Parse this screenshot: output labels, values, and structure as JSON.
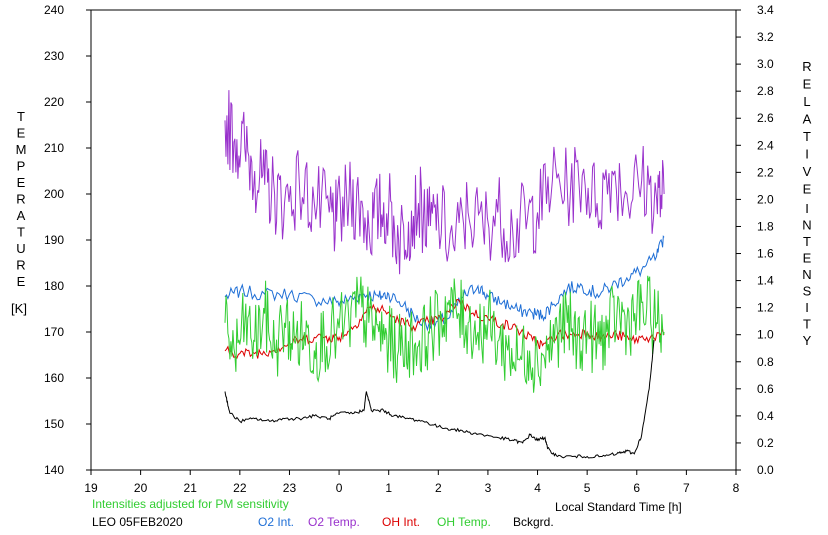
{
  "chart_data": {
    "type": "line",
    "left_axis": {
      "label_letters": [
        "T",
        "E",
        "M",
        "P",
        "E",
        "R",
        "A",
        "T",
        "U",
        "R",
        "E"
      ],
      "unit": "[K]",
      "ylim": [
        140,
        240
      ],
      "ticks": [
        "140",
        "150",
        "160",
        "170",
        "180",
        "190",
        "200",
        "210",
        "220",
        "230",
        "240"
      ]
    },
    "right_axis": {
      "label_word1": [
        "R",
        "E",
        "L",
        "A",
        "T",
        "I",
        "V",
        "E"
      ],
      "label_word2": [
        "I",
        "N",
        "T",
        "E",
        "N",
        "S",
        "I",
        "T",
        "Y"
      ],
      "ylim": [
        0.0,
        3.4
      ],
      "ticks": [
        "0.0",
        "0.2",
        "0.4",
        "0.6",
        "0.8",
        "1.0",
        "1.2",
        "1.4",
        "1.6",
        "1.8",
        "2.0",
        "2.2",
        "2.4",
        "2.6",
        "2.8",
        "3.0",
        "3.2",
        "3.4"
      ]
    },
    "x_axis": {
      "label": "Local Standard Time [h]",
      "range": [
        19,
        32
      ],
      "ticks": [
        "19",
        "20",
        "21",
        "22",
        "23",
        "0",
        "1",
        "2",
        "3",
        "4",
        "5",
        "6",
        "7",
        "8"
      ]
    },
    "note": "Intensities adjusted for PM sensitivity",
    "station": "LEO 05FEB2020",
    "series": [
      {
        "name": "O2 Int.",
        "color": "#1f6fd6",
        "axis": "right",
        "points": [
          [
            21.7,
            1.28
          ],
          [
            22.0,
            1.32
          ],
          [
            22.5,
            1.3
          ],
          [
            23.0,
            1.3
          ],
          [
            23.5,
            1.26
          ],
          [
            23.95,
            1.24
          ],
          [
            24.2,
            1.26
          ],
          [
            24.5,
            1.3
          ],
          [
            24.8,
            1.28
          ],
          [
            25.0,
            1.3
          ],
          [
            25.3,
            1.22
          ],
          [
            25.6,
            1.1
          ],
          [
            25.9,
            1.08
          ],
          [
            26.2,
            1.12
          ],
          [
            26.5,
            1.28
          ],
          [
            26.8,
            1.36
          ],
          [
            27.0,
            1.28
          ],
          [
            27.3,
            1.24
          ],
          [
            27.6,
            1.18
          ],
          [
            27.9,
            1.16
          ],
          [
            28.1,
            1.14
          ],
          [
            28.3,
            1.22
          ],
          [
            28.6,
            1.34
          ],
          [
            28.9,
            1.36
          ],
          [
            29.2,
            1.3
          ],
          [
            29.5,
            1.36
          ],
          [
            29.8,
            1.42
          ],
          [
            30.1,
            1.48
          ],
          [
            30.4,
            1.58
          ],
          [
            30.55,
            1.72
          ]
        ]
      },
      {
        "name": "O2 Temp.",
        "color": "#9932cc",
        "axis": "left",
        "points": [
          [
            21.7,
            216
          ],
          [
            21.9,
            212
          ],
          [
            22.1,
            210
          ],
          [
            22.3,
            205
          ],
          [
            22.5,
            202
          ],
          [
            22.7,
            200
          ],
          [
            22.9,
            198
          ],
          [
            23.2,
            202
          ],
          [
            23.5,
            198
          ],
          [
            23.8,
            196
          ],
          [
            23.95,
            194
          ],
          [
            24.2,
            199
          ],
          [
            24.4,
            198
          ],
          [
            24.6,
            193
          ],
          [
            24.8,
            196
          ],
          [
            25.0,
            197
          ],
          [
            25.2,
            190
          ],
          [
            25.4,
            194
          ],
          [
            25.6,
            198
          ],
          [
            25.8,
            193
          ],
          [
            26.0,
            195
          ],
          [
            26.3,
            189
          ],
          [
            26.6,
            196
          ],
          [
            26.9,
            193
          ],
          [
            27.2,
            196
          ],
          [
            27.5,
            192
          ],
          [
            27.8,
            195
          ],
          [
            28.0,
            196
          ],
          [
            28.3,
            203
          ],
          [
            28.6,
            201
          ],
          [
            28.9,
            204
          ],
          [
            29.2,
            198
          ],
          [
            29.5,
            205
          ],
          [
            29.8,
            200
          ],
          [
            30.1,
            203
          ],
          [
            30.4,
            199
          ],
          [
            30.55,
            200
          ]
        ]
      },
      {
        "name": "OH Int.",
        "color": "#dc0000",
        "axis": "right",
        "points": [
          [
            21.7,
            0.88
          ],
          [
            22.0,
            0.86
          ],
          [
            22.3,
            0.86
          ],
          [
            22.6,
            0.88
          ],
          [
            22.9,
            0.92
          ],
          [
            23.2,
            0.96
          ],
          [
            23.5,
            0.98
          ],
          [
            23.8,
            0.98
          ],
          [
            24.0,
            0.98
          ],
          [
            24.3,
            1.06
          ],
          [
            24.6,
            1.2
          ],
          [
            24.9,
            1.18
          ],
          [
            25.2,
            1.1
          ],
          [
            25.5,
            1.06
          ],
          [
            25.8,
            1.1
          ],
          [
            26.1,
            1.12
          ],
          [
            26.4,
            1.26
          ],
          [
            26.7,
            1.16
          ],
          [
            27.0,
            1.12
          ],
          [
            27.3,
            1.08
          ],
          [
            27.6,
            1.04
          ],
          [
            27.9,
            0.96
          ],
          [
            28.1,
            0.92
          ],
          [
            28.4,
            1.0
          ],
          [
            28.7,
            1.0
          ],
          [
            29.0,
            1.02
          ],
          [
            29.3,
            0.98
          ],
          [
            29.6,
            1.0
          ],
          [
            29.9,
            0.96
          ],
          [
            30.2,
            0.98
          ],
          [
            30.55,
            1.0
          ]
        ]
      },
      {
        "name": "OH Temp.",
        "color": "#32cd32",
        "axis": "left",
        "points": [
          [
            21.7,
            172
          ],
          [
            21.9,
            165
          ],
          [
            22.1,
            172
          ],
          [
            22.3,
            168
          ],
          [
            22.5,
            174
          ],
          [
            22.7,
            166
          ],
          [
            22.9,
            172
          ],
          [
            23.1,
            168
          ],
          [
            23.3,
            170
          ],
          [
            23.5,
            166
          ],
          [
            23.7,
            169
          ],
          [
            23.95,
            170
          ],
          [
            24.2,
            172
          ],
          [
            24.4,
            176
          ],
          [
            24.6,
            172
          ],
          [
            24.8,
            170
          ],
          [
            25.0,
            168
          ],
          [
            25.2,
            166
          ],
          [
            25.4,
            168
          ],
          [
            25.6,
            167
          ],
          [
            25.8,
            170
          ],
          [
            26.0,
            172
          ],
          [
            26.2,
            176
          ],
          [
            26.4,
            174
          ],
          [
            26.6,
            172
          ],
          [
            26.8,
            170
          ],
          [
            27.0,
            172
          ],
          [
            27.2,
            168
          ],
          [
            27.4,
            166
          ],
          [
            27.6,
            164
          ],
          [
            27.8,
            166
          ],
          [
            28.0,
            164
          ],
          [
            28.2,
            166
          ],
          [
            28.4,
            170
          ],
          [
            28.6,
            172
          ],
          [
            28.8,
            168
          ],
          [
            29.0,
            170
          ],
          [
            29.2,
            168
          ],
          [
            29.4,
            170
          ],
          [
            29.6,
            174
          ],
          [
            29.8,
            172
          ],
          [
            30.0,
            174
          ],
          [
            30.2,
            175
          ],
          [
            30.4,
            172
          ],
          [
            30.55,
            170
          ]
        ]
      },
      {
        "name": "Bckgrd.",
        "color": "#000000",
        "axis": "right",
        "points": [
          [
            21.7,
            0.58
          ],
          [
            21.8,
            0.42
          ],
          [
            22.0,
            0.36
          ],
          [
            22.3,
            0.38
          ],
          [
            22.6,
            0.36
          ],
          [
            22.9,
            0.38
          ],
          [
            23.2,
            0.38
          ],
          [
            23.5,
            0.4
          ],
          [
            23.8,
            0.38
          ],
          [
            24.0,
            0.42
          ],
          [
            24.3,
            0.42
          ],
          [
            24.5,
            0.44
          ],
          [
            24.55,
            0.58
          ],
          [
            24.65,
            0.44
          ],
          [
            24.9,
            0.44
          ],
          [
            25.1,
            0.4
          ],
          [
            25.4,
            0.38
          ],
          [
            25.7,
            0.36
          ],
          [
            26.0,
            0.32
          ],
          [
            26.3,
            0.3
          ],
          [
            26.6,
            0.28
          ],
          [
            26.9,
            0.26
          ],
          [
            27.2,
            0.24
          ],
          [
            27.5,
            0.22
          ],
          [
            27.7,
            0.2
          ],
          [
            27.85,
            0.26
          ],
          [
            28.0,
            0.22
          ],
          [
            28.15,
            0.24
          ],
          [
            28.2,
            0.16
          ],
          [
            28.4,
            0.1
          ],
          [
            28.7,
            0.1
          ],
          [
            29.0,
            0.1
          ],
          [
            29.3,
            0.1
          ],
          [
            29.6,
            0.12
          ],
          [
            29.8,
            0.14
          ],
          [
            29.95,
            0.12
          ],
          [
            30.1,
            0.26
          ],
          [
            30.25,
            0.6
          ],
          [
            30.35,
            0.96
          ]
        ]
      }
    ]
  }
}
